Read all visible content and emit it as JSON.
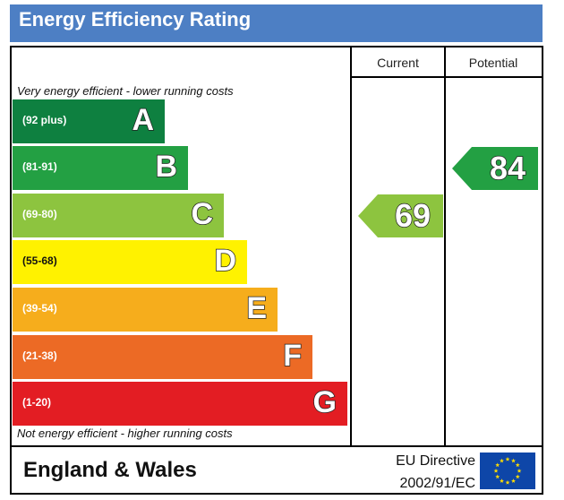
{
  "header": {
    "title": "Energy Efficiency Rating"
  },
  "columns": {
    "current": "Current",
    "potential": "Potential"
  },
  "notes": {
    "top": "Very energy efficient - lower running costs",
    "bottom": "Not energy efficient - higher running costs"
  },
  "chart_data": {
    "type": "bar",
    "bands": [
      {
        "letter": "A",
        "range": "(92 plus)",
        "color": "#0e8040"
      },
      {
        "letter": "B",
        "range": "(81-91)",
        "color": "#23a043"
      },
      {
        "letter": "C",
        "range": "(69-80)",
        "color": "#8dc43f"
      },
      {
        "letter": "D",
        "range": "(55-68)",
        "color": "#fff200"
      },
      {
        "letter": "E",
        "range": "(39-54)",
        "color": "#f6ad1c"
      },
      {
        "letter": "F",
        "range": "(21-38)",
        "color": "#ec6a25"
      },
      {
        "letter": "G",
        "range": "(1-20)",
        "color": "#e31d23"
      }
    ],
    "current": {
      "value": 69,
      "band": "C",
      "color": "#8dc43f"
    },
    "potential": {
      "value": 84,
      "band": "B",
      "color": "#23a043"
    }
  },
  "footer": {
    "country": "England & Wales",
    "directive_line1": "EU Directive",
    "directive_line2": "2002/91/EC"
  },
  "colors": {
    "title_bar": "#4d7fc4",
    "eu_flag": "#0e46a8",
    "eu_stars": "#ffdd00"
  }
}
